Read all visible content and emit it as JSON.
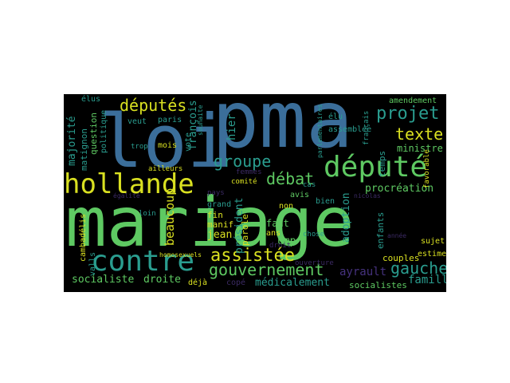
{
  "palette": {
    "blue": "#3b6e9a",
    "teal": "#2a9d8f",
    "green": "#5ec962",
    "yellow": "#d9e021",
    "purple": "#46327e",
    "dark": "#3b2a63"
  },
  "words": {
    "mariage": "mariage",
    "pma": "pma",
    "loi": "loi",
    "depute": "député",
    "hollande": "hollande",
    "contre": "contre",
    "deputes": "députés",
    "gouvernement": "gouvernement",
    "assistee": "assistée",
    "groupe": "groupe",
    "debat": "débat",
    "projet": "projet",
    "texte": "texte",
    "gauche": "gauche",
    "procreation": "procréation",
    "beaucoup": "beaucoup",
    "majorite": "majorité",
    "droite": "droite",
    "socialiste": "socialiste",
    "medicalement": "médicalement",
    "famille": "famille",
    "ministre": "ministre",
    "adoption": "adoption",
    "ayrault": "ayrault",
    "hier": "hier",
    "president": "président",
    "parole": "parole",
    "francois": "françois",
    "jean": "jean",
    "manif": "manif",
    "fin": "fin",
    "ump": "ump",
    "avis": "avis",
    "non": "non",
    "faut": "faut",
    "ans": "ans",
    "couples": "couples",
    "estime": "estime",
    "sujet": "sujet",
    "enfants": "enfants",
    "socialistes": "socialistes",
    "amendement": "amendement",
    "elus": "élus",
    "temps": "temps",
    "bien": "bien",
    "cope": "copé",
    "vote": "vote",
    "paris": "paris",
    "mois": "mois",
    "veut": "veut",
    "question": "question",
    "politique": "politique",
    "matignon": "matignon",
    "cambadelis": "cambadélis",
    "valls": "valls",
    "homosexuels": "homosexuels",
    "loin": "loin",
    "deja": "déjà",
    "comite": "comité",
    "femmes": "femmes",
    "grand": "grand",
    "assemblee": "assemblée",
    "parlementaires": "parlementaires",
    "chose": "chose",
    "francais": "français",
    "favorable": "favorable",
    "ouverture": "ouverture",
    "ailleurs": "ailleurs",
    "elu": "élu",
    "cas": "cas",
    "nicolas": "nicolas",
    "egalite": "égalité",
    "annee": "année",
    "trop": "trop",
    "pays": "pays",
    "droit": "droit",
    "souhaite": "souhaite"
  }
}
